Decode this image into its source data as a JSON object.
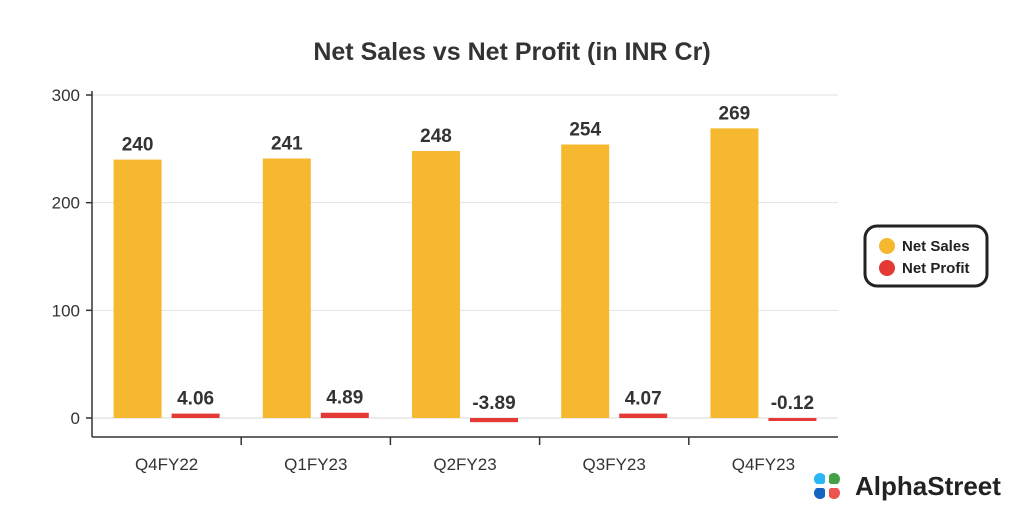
{
  "chart_data": {
    "type": "bar",
    "title": "Net Sales vs Net Profit (in INR Cr)",
    "categories": [
      "Q4FY22",
      "Q1FY23",
      "Q2FY23",
      "Q3FY23",
      "Q4FY23"
    ],
    "series": [
      {
        "name": "Net Sales",
        "values": [
          240,
          241,
          248,
          254,
          269
        ],
        "labels": [
          "240",
          "241",
          "248",
          "254",
          "269"
        ],
        "color": "#F5B82E"
      },
      {
        "name": "Net Profit",
        "values": [
          4.06,
          4.89,
          -3.89,
          4.07,
          -0.12
        ],
        "labels": [
          "4.06",
          "4.89",
          "-3.89",
          "4.07",
          "-0.12"
        ],
        "color": "#E53935"
      }
    ],
    "yticks": [
      "0",
      "100",
      "200",
      "300"
    ],
    "ylim": [
      0,
      300
    ],
    "grid": true,
    "legend_position": "right"
  },
  "brand": {
    "name": "AlphaStreet",
    "colors": [
      "#1565C0",
      "#29B6F6",
      "#43A047",
      "#EF5350"
    ]
  }
}
